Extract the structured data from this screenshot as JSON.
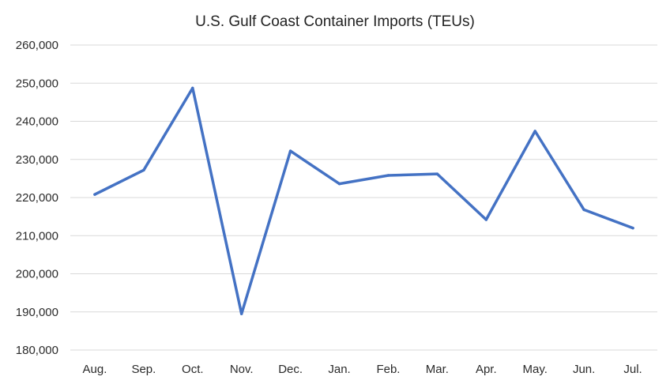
{
  "chart_data": {
    "type": "line",
    "title": "U.S. Gulf Coast Container Imports (TEUs)",
    "categories": [
      "Aug.",
      "Sep.",
      "Oct.",
      "Nov.",
      "Dec.",
      "Jan.",
      "Feb.",
      "Mar.",
      "Apr.",
      "May.",
      "Jun.",
      "Jul."
    ],
    "series": [
      {
        "values": [
          220800,
          227200,
          248700,
          189500,
          232200,
          223600,
          225800,
          226200,
          214200,
          237400,
          216800,
          212000
        ]
      }
    ],
    "xlabel": "",
    "ylabel": "",
    "ylim": [
      180000,
      260000
    ],
    "yticks": [
      180000,
      190000,
      200000,
      210000,
      220000,
      230000,
      240000,
      250000,
      260000
    ],
    "ytick_labels": [
      "180,000",
      "190,000",
      "200,000",
      "210,000",
      "220,000",
      "230,000",
      "240,000",
      "250,000",
      "260,000"
    ],
    "grid": true,
    "legend": "none",
    "line_color": "#4472c4",
    "grid_color": "#d9d9d9"
  }
}
